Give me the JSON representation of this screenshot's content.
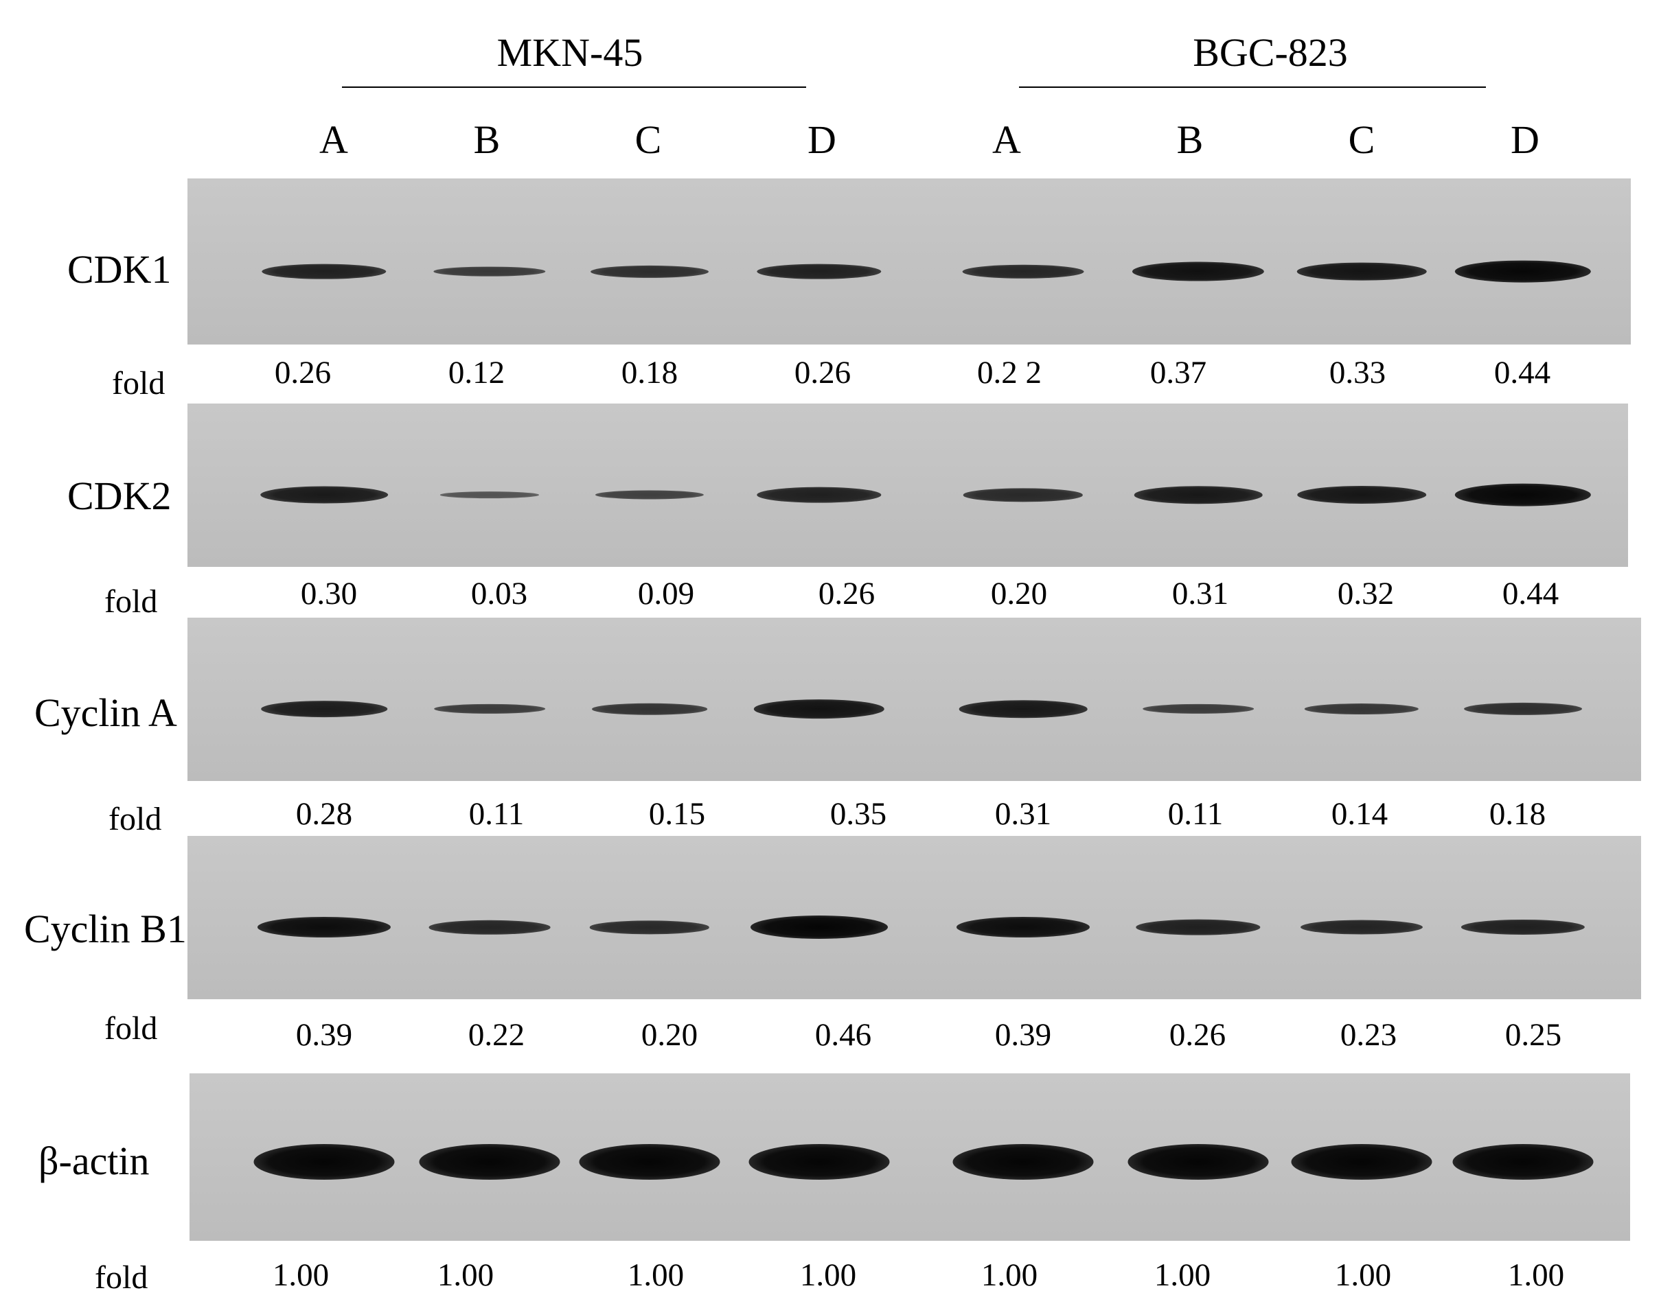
{
  "groups": [
    {
      "name": "MKN-45",
      "lanes": [
        "A",
        "B",
        "C",
        "D"
      ]
    },
    {
      "name": "BGC-823",
      "lanes": [
        "A",
        "B",
        "C",
        "D"
      ]
    }
  ],
  "fold_label": "fold",
  "blots": [
    {
      "protein": "CDK1",
      "fold": [
        "0.26",
        "0.12",
        "0.18",
        "0.26",
        "0.2 2",
        "0.37",
        "0.33",
        "0.44"
      ],
      "band_intensity": [
        0.26,
        0.12,
        0.18,
        0.26,
        0.22,
        0.37,
        0.33,
        0.44
      ]
    },
    {
      "protein": "CDK2",
      "fold": [
        "0.30",
        "0.03",
        "0.09",
        "0.26",
        "0.20",
        "0.31",
        "0.32",
        "0.44"
      ],
      "band_intensity": [
        0.3,
        0.03,
        0.09,
        0.26,
        0.2,
        0.31,
        0.32,
        0.44
      ]
    },
    {
      "protein": "Cyclin A",
      "fold": [
        "0.28",
        "0.11",
        "0.15",
        "0.35",
        "0.31",
        "0.11",
        "0.14",
        "0.18"
      ],
      "band_intensity": [
        0.28,
        0.11,
        0.15,
        0.35,
        0.31,
        0.11,
        0.14,
        0.18
      ]
    },
    {
      "protein": "Cyclin B1",
      "fold": [
        "0.39",
        "0.22",
        "0.20",
        "0.46",
        "0.39",
        "0.26",
        "0.23",
        "0.25"
      ],
      "band_intensity": [
        0.39,
        0.22,
        0.2,
        0.46,
        0.39,
        0.26,
        0.23,
        0.25
      ]
    },
    {
      "protein": "β-actin",
      "fold": [
        "1.00",
        "1.00",
        "1.00",
        "1.00",
        "1.00",
        "1.00",
        "1.00",
        "1.00"
      ],
      "band_intensity": [
        1.0,
        1.0,
        1.0,
        1.0,
        1.0,
        1.0,
        1.0,
        1.0
      ]
    }
  ]
}
